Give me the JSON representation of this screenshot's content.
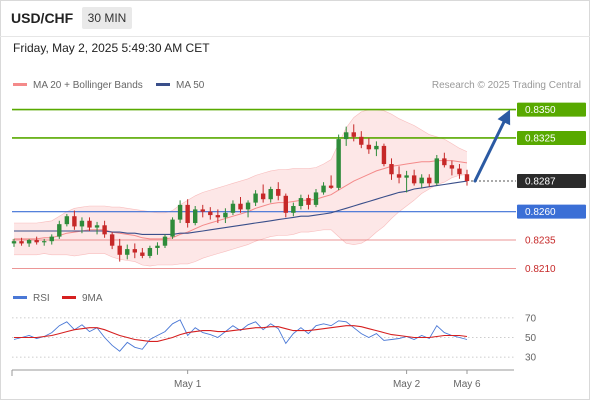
{
  "header": {
    "symbol": "USD/CHF",
    "timeframe": "30 MIN",
    "datetime": "Friday, May 2, 2025 5:49:30 AM CET"
  },
  "legend": {
    "bollinger_label": "MA 20 + Bollinger Bands",
    "ma50_label": "MA 50",
    "credit": "Research © 2025 Trading Central"
  },
  "rsi_legend": {
    "rsi_label": "RSI",
    "ma_label": "9MA"
  },
  "colors": {
    "up": "#2e8b3a",
    "down": "#c62828",
    "resistance": "#58a900",
    "pivot": "#3b6fd6",
    "support": "#e57373",
    "ma50": "#3a4f8a",
    "bollinger": "#f48a8a",
    "arrow": "#2b5aa3",
    "current": "#2b2b2b",
    "rsi": "#4a78d6",
    "rsi_ma": "#d62020"
  },
  "chart_data": {
    "type": "candlestick",
    "ylim": [
      0.8198,
      0.8362
    ],
    "x_labels": [
      {
        "index": 23,
        "label": "May 1"
      },
      {
        "index": 52,
        "label": "May 2"
      },
      {
        "index": 60,
        "label": "May 6"
      }
    ],
    "levels": [
      {
        "value": 0.835,
        "label": "0.8350",
        "kind": "resistance"
      },
      {
        "value": 0.8325,
        "label": "0.8325",
        "kind": "resistance"
      },
      {
        "value": 0.8287,
        "label": "0.8287",
        "kind": "current"
      },
      {
        "value": 0.826,
        "label": "0.8260",
        "kind": "pivot"
      },
      {
        "value": 0.8235,
        "label": "0.8235",
        "kind": "support"
      },
      {
        "value": 0.821,
        "label": "0.8210",
        "kind": "support"
      }
    ],
    "candles": [
      [
        0.8232,
        0.8236,
        0.8229,
        0.8234
      ],
      [
        0.8234,
        0.8237,
        0.823,
        0.8232
      ],
      [
        0.8232,
        0.8236,
        0.8229,
        0.8235
      ],
      [
        0.8235,
        0.8238,
        0.8231,
        0.8233
      ],
      [
        0.8233,
        0.8236,
        0.823,
        0.8234
      ],
      [
        0.8234,
        0.824,
        0.8231,
        0.8238
      ],
      [
        0.8238,
        0.8252,
        0.8236,
        0.8249
      ],
      [
        0.8249,
        0.8258,
        0.8247,
        0.8256
      ],
      [
        0.8256,
        0.8261,
        0.8244,
        0.8247
      ],
      [
        0.8247,
        0.8255,
        0.8241,
        0.8252
      ],
      [
        0.8252,
        0.8255,
        0.8243,
        0.8246
      ],
      [
        0.8246,
        0.8251,
        0.824,
        0.8248
      ],
      [
        0.8248,
        0.8252,
        0.8237,
        0.824
      ],
      [
        0.824,
        0.8242,
        0.8227,
        0.823
      ],
      [
        0.823,
        0.8236,
        0.8216,
        0.8222
      ],
      [
        0.8222,
        0.8231,
        0.8218,
        0.8227
      ],
      [
        0.8227,
        0.8232,
        0.8219,
        0.8224
      ],
      [
        0.8224,
        0.8228,
        0.8219,
        0.8221
      ],
      [
        0.8221,
        0.823,
        0.8219,
        0.8228
      ],
      [
        0.8228,
        0.8233,
        0.8222,
        0.823
      ],
      [
        0.823,
        0.824,
        0.8228,
        0.8238
      ],
      [
        0.8238,
        0.8255,
        0.8236,
        0.8253
      ],
      [
        0.8253,
        0.827,
        0.825,
        0.8266
      ],
      [
        0.8266,
        0.8271,
        0.8246,
        0.825
      ],
      [
        0.825,
        0.8265,
        0.8248,
        0.8262
      ],
      [
        0.8262,
        0.8266,
        0.8255,
        0.826
      ],
      [
        0.826,
        0.8264,
        0.8253,
        0.8257
      ],
      [
        0.8257,
        0.8262,
        0.825,
        0.8255
      ],
      [
        0.8255,
        0.8263,
        0.825,
        0.8259
      ],
      [
        0.8259,
        0.827,
        0.8257,
        0.8267
      ],
      [
        0.8267,
        0.8273,
        0.8259,
        0.8262
      ],
      [
        0.8262,
        0.827,
        0.8255,
        0.8268
      ],
      [
        0.8268,
        0.8279,
        0.8265,
        0.8276
      ],
      [
        0.8276,
        0.8284,
        0.8268,
        0.8271
      ],
      [
        0.8271,
        0.8282,
        0.8268,
        0.828
      ],
      [
        0.828,
        0.8286,
        0.827,
        0.8274
      ],
      [
        0.8274,
        0.8276,
        0.8255,
        0.8259
      ],
      [
        0.8259,
        0.8268,
        0.8256,
        0.8265
      ],
      [
        0.8265,
        0.8275,
        0.8262,
        0.8272
      ],
      [
        0.8272,
        0.8275,
        0.8262,
        0.8266
      ],
      [
        0.8266,
        0.828,
        0.8264,
        0.8277
      ],
      [
        0.8277,
        0.8286,
        0.8275,
        0.8283
      ],
      [
        0.8283,
        0.8292,
        0.828,
        0.8281
      ],
      [
        0.8281,
        0.8328,
        0.8279,
        0.8324
      ],
      [
        0.8324,
        0.8335,
        0.8318,
        0.833
      ],
      [
        0.833,
        0.8337,
        0.8322,
        0.8326
      ],
      [
        0.8326,
        0.8331,
        0.8316,
        0.8319
      ],
      [
        0.8319,
        0.8325,
        0.8311,
        0.8315
      ],
      [
        0.8315,
        0.8322,
        0.8309,
        0.8318
      ],
      [
        0.8318,
        0.832,
        0.83,
        0.8302
      ],
      [
        0.8302,
        0.8307,
        0.8288,
        0.8293
      ],
      [
        0.8293,
        0.83,
        0.8285,
        0.829
      ],
      [
        0.829,
        0.8296,
        0.8277,
        0.8292
      ],
      [
        0.8292,
        0.8297,
        0.8283,
        0.8285
      ],
      [
        0.8285,
        0.8293,
        0.8281,
        0.829
      ],
      [
        0.829,
        0.8293,
        0.8282,
        0.8285
      ],
      [
        0.8285,
        0.831,
        0.8283,
        0.8307
      ],
      [
        0.8307,
        0.8312,
        0.8299,
        0.8301
      ],
      [
        0.8301,
        0.8305,
        0.8292,
        0.8298
      ],
      [
        0.8298,
        0.8302,
        0.8289,
        0.8293
      ],
      [
        0.8293,
        0.8297,
        0.8283,
        0.8287
      ]
    ],
    "ma20": [
      0.8236,
      0.8236,
      0.8236,
      0.8236,
      0.8237,
      0.8237,
      0.8239,
      0.8241,
      0.8242,
      0.8243,
      0.8244,
      0.8244,
      0.8244,
      0.8242,
      0.8241,
      0.824,
      0.8239,
      0.8237,
      0.8236,
      0.8236,
      0.8236,
      0.8237,
      0.824,
      0.8242,
      0.8245,
      0.8248,
      0.825,
      0.8252,
      0.8254,
      0.8256,
      0.8258,
      0.826,
      0.8263,
      0.8265,
      0.8267,
      0.8268,
      0.8268,
      0.8269,
      0.827,
      0.827,
      0.8271,
      0.8273,
      0.8275,
      0.8279,
      0.8283,
      0.8287,
      0.829,
      0.8293,
      0.8296,
      0.8298,
      0.83,
      0.8301,
      0.8302,
      0.8303,
      0.8304,
      0.8304,
      0.8305,
      0.8305,
      0.8305,
      0.8304,
      0.8303
    ],
    "bb_upper": [
      0.825,
      0.825,
      0.825,
      0.825,
      0.8251,
      0.8252,
      0.8256,
      0.826,
      0.8263,
      0.8264,
      0.8265,
      0.8265,
      0.8265,
      0.8264,
      0.8264,
      0.8263,
      0.8262,
      0.8261,
      0.826,
      0.8259,
      0.8259,
      0.8261,
      0.8266,
      0.827,
      0.8274,
      0.8277,
      0.8279,
      0.8281,
      0.8283,
      0.8285,
      0.8287,
      0.8289,
      0.8292,
      0.8294,
      0.8296,
      0.8297,
      0.8297,
      0.8298,
      0.8298,
      0.8298,
      0.8299,
      0.8302,
      0.8306,
      0.832,
      0.8334,
      0.8343,
      0.8348,
      0.835,
      0.835,
      0.8349,
      0.8346,
      0.8342,
      0.8339,
      0.8336,
      0.8332,
      0.8328,
      0.8326,
      0.8324,
      0.832,
      0.8316,
      0.8313
    ],
    "bb_lower": [
      0.8222,
      0.8222,
      0.8222,
      0.8222,
      0.8223,
      0.8222,
      0.8222,
      0.8222,
      0.8221,
      0.8222,
      0.8223,
      0.8223,
      0.8223,
      0.822,
      0.8218,
      0.8217,
      0.8216,
      0.8213,
      0.8212,
      0.8213,
      0.8213,
      0.8213,
      0.8214,
      0.8214,
      0.8216,
      0.8219,
      0.8221,
      0.8223,
      0.8225,
      0.8227,
      0.8229,
      0.8231,
      0.8234,
      0.8236,
      0.8238,
      0.8239,
      0.8239,
      0.824,
      0.8242,
      0.8242,
      0.8243,
      0.8244,
      0.8244,
      0.8238,
      0.8232,
      0.8231,
      0.8232,
      0.8236,
      0.8242,
      0.8247,
      0.8254,
      0.826,
      0.8265,
      0.827,
      0.8276,
      0.828,
      0.8284,
      0.8286,
      0.829,
      0.8292,
      0.8293
    ],
    "ma50": [
      0.8243,
      0.8243,
      0.8243,
      0.8243,
      0.8243,
      0.8243,
      0.8243,
      0.8243,
      0.8243,
      0.8243,
      0.8243,
      0.8243,
      0.8243,
      0.8242,
      0.8242,
      0.8241,
      0.8241,
      0.824,
      0.824,
      0.824,
      0.824,
      0.824,
      0.8241,
      0.8241,
      0.8242,
      0.8243,
      0.8244,
      0.8245,
      0.8246,
      0.8247,
      0.8248,
      0.8249,
      0.825,
      0.8251,
      0.8252,
      0.8253,
      0.8254,
      0.8255,
      0.8256,
      0.8256,
      0.8257,
      0.8258,
      0.8259,
      0.8261,
      0.8263,
      0.8265,
      0.8267,
      0.8269,
      0.8271,
      0.8273,
      0.8275,
      0.8277,
      0.8278,
      0.828,
      0.8281,
      0.8282,
      0.8283,
      0.8284,
      0.8285,
      0.8286,
      0.8287
    ],
    "arrow": {
      "from_index": 60,
      "from_value": 0.8287,
      "to_value": 0.835
    },
    "rsi": {
      "ylim": [
        25,
        75
      ],
      "ticks": [
        70,
        50,
        30
      ],
      "rsi": [
        48,
        50,
        52,
        49,
        51,
        55,
        62,
        66,
        58,
        63,
        56,
        60,
        50,
        42,
        36,
        45,
        40,
        38,
        48,
        52,
        56,
        64,
        68,
        52,
        60,
        55,
        53,
        50,
        56,
        62,
        57,
        63,
        66,
        58,
        64,
        59,
        44,
        54,
        60,
        54,
        62,
        64,
        62,
        67,
        66,
        60,
        54,
        50,
        54,
        47,
        48,
        49,
        51,
        48,
        52,
        49,
        62,
        55,
        52,
        50,
        48
      ],
      "ma": [
        50,
        50,
        50,
        50,
        51,
        52,
        54,
        56,
        58,
        59,
        60,
        60,
        58,
        55,
        52,
        50,
        48,
        47,
        46,
        46,
        48,
        50,
        53,
        55,
        56,
        57,
        57,
        56,
        56,
        57,
        58,
        59,
        60,
        60,
        61,
        61,
        59,
        57,
        57,
        57,
        58,
        59,
        60,
        61,
        62,
        62,
        61,
        59,
        57,
        55,
        53,
        52,
        51,
        50,
        50,
        50,
        51,
        52,
        52,
        52,
        51
      ]
    }
  }
}
